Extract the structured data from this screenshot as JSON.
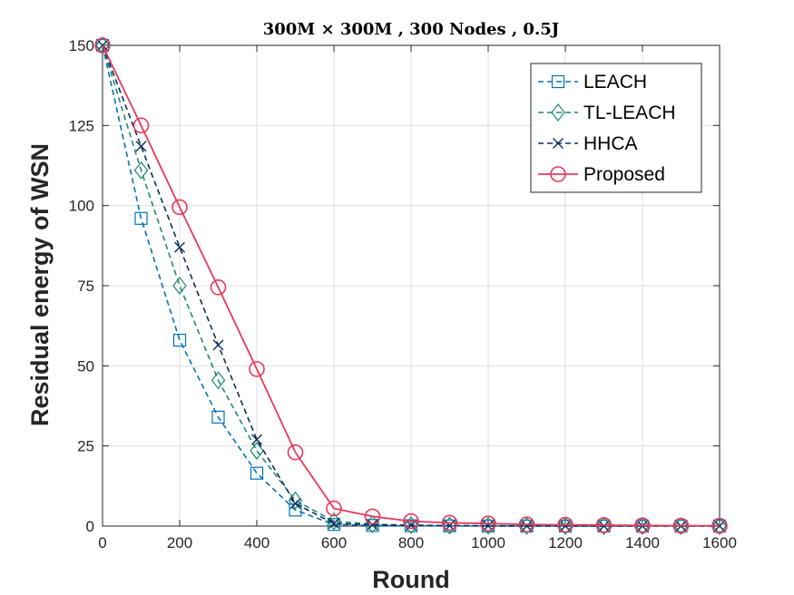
{
  "chart_data": {
    "type": "line",
    "title": "300M × 300M , 300 Nodes , 0.5J",
    "xlabel": "Round",
    "ylabel": "Residual energy of WSN",
    "xlim": [
      0,
      1600
    ],
    "ylim": [
      0,
      150
    ],
    "xticks": [
      0,
      200,
      400,
      600,
      800,
      1000,
      1200,
      1400,
      1600
    ],
    "yticks": [
      0,
      25,
      50,
      75,
      100,
      125,
      150
    ],
    "grid": true,
    "legend_position": "top-right",
    "x": [
      0,
      100,
      200,
      300,
      400,
      500,
      600,
      700,
      800,
      900,
      1000,
      1100,
      1200,
      1300,
      1400,
      1500,
      1600
    ],
    "series": [
      {
        "name": "LEACH",
        "color": "#0072BD",
        "line": "dashed",
        "marker": "square",
        "values": [
          150,
          96,
          58,
          34,
          16.5,
          5,
          0.5,
          0.2,
          0.1,
          0.05,
          0.02,
          0,
          0,
          0,
          0,
          0,
          0
        ]
      },
      {
        "name": "TL-LEACH",
        "color": "#1F8A70",
        "line": "dashed",
        "marker": "diamond",
        "values": [
          150,
          111,
          75,
          45.5,
          23.5,
          8,
          1.5,
          0.6,
          0.3,
          0.15,
          0.1,
          0.05,
          0,
          0,
          0,
          0,
          0
        ]
      },
      {
        "name": "HHCA",
        "color": "#0B2E5E",
        "line": "dashed",
        "marker": "x",
        "values": [
          150,
          118.5,
          87,
          56.5,
          27,
          7,
          0.8,
          0.4,
          0.2,
          0.1,
          0.05,
          0,
          0,
          0,
          0,
          0,
          0
        ]
      },
      {
        "name": "Proposed",
        "color": "#E8395A",
        "line": "solid",
        "marker": "circle",
        "values": [
          150,
          125,
          99.5,
          74.5,
          49,
          23,
          5.5,
          3,
          1.5,
          1,
          0.8,
          0.5,
          0.4,
          0.3,
          0.2,
          0.1,
          0.1
        ]
      }
    ]
  }
}
